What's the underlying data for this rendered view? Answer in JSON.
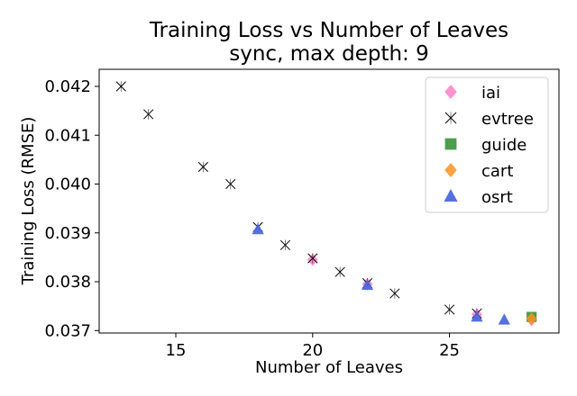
{
  "chart_data": {
    "type": "scatter",
    "title": "Training Loss vs Number of Leaves",
    "subtitle": "sync, max depth: 9",
    "xlabel": "Number of Leaves",
    "ylabel": "Training Loss (RMSE)",
    "xlim": [
      12.2,
      29.0
    ],
    "ylim": [
      0.03695,
      0.04235
    ],
    "xticks": [
      15,
      20,
      25
    ],
    "yticks": [
      0.037,
      0.038,
      0.039,
      0.04,
      0.041,
      0.042
    ],
    "ytick_labels": [
      "0.037",
      "0.038",
      "0.039",
      "0.040",
      "0.041",
      "0.042"
    ],
    "grid": false,
    "legend_position": "top-right",
    "series": [
      {
        "name": "iai",
        "marker": "diamond",
        "color": "#ff7fc8",
        "points": [
          [
            20,
            0.03845
          ],
          [
            22,
            0.03795
          ],
          [
            26,
            0.03733
          ],
          [
            28,
            0.03722
          ]
        ]
      },
      {
        "name": "evtree",
        "marker": "x",
        "color": "#000000",
        "points": [
          [
            13,
            0.042
          ],
          [
            14,
            0.04143
          ],
          [
            16,
            0.04035
          ],
          [
            17,
            0.04
          ],
          [
            18,
            0.03912
          ],
          [
            19,
            0.03875
          ],
          [
            20,
            0.03848
          ],
          [
            21,
            0.0382
          ],
          [
            22,
            0.03797
          ],
          [
            23,
            0.03776
          ],
          [
            25,
            0.03743
          ],
          [
            26,
            0.03735
          ]
        ]
      },
      {
        "name": "guide",
        "marker": "square",
        "color": "#3a923a",
        "points": [
          [
            28,
            0.03728
          ]
        ]
      },
      {
        "name": "cart",
        "marker": "diamond",
        "color": "#ff9320",
        "points": [
          [
            28,
            0.03724
          ]
        ]
      },
      {
        "name": "osrt",
        "marker": "triangle",
        "color": "#4c68dc",
        "points": [
          [
            18,
            0.03907
          ],
          [
            22,
            0.03793
          ],
          [
            26,
            0.03728
          ],
          [
            27,
            0.03722
          ]
        ]
      }
    ]
  }
}
